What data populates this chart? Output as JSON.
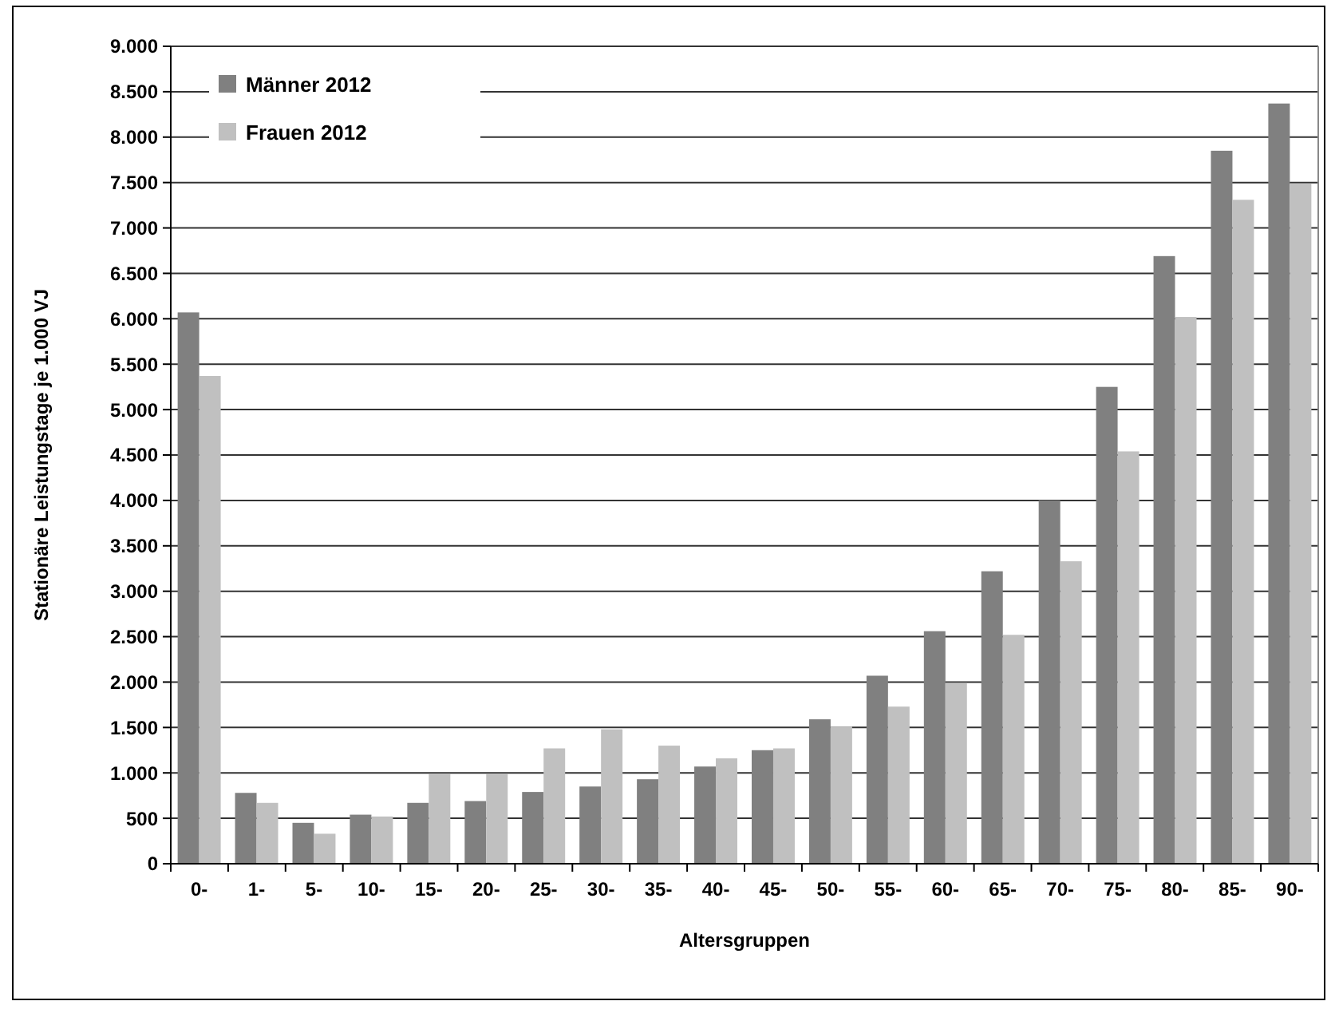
{
  "chart_data": {
    "type": "bar",
    "xlabel": "Altersgruppen",
    "ylabel": "Stationäre Leistungstage je 1.000 VJ",
    "categories": [
      "0-",
      "1-",
      "5-",
      "10-",
      "15-",
      "20-",
      "25-",
      "30-",
      "35-",
      "40-",
      "45-",
      "50-",
      "55-",
      "60-",
      "65-",
      "70-",
      "75-",
      "80-",
      "85-",
      "90-"
    ],
    "series": [
      {
        "name": "Männer 2012",
        "color": "#808080",
        "values": [
          6070,
          780,
          450,
          540,
          670,
          690,
          790,
          850,
          930,
          1070,
          1250,
          1590,
          2070,
          2560,
          3220,
          4000,
          5250,
          6690,
          7850,
          8370
        ]
      },
      {
        "name": "Frauen 2012",
        "color": "#c0c0c0",
        "values": [
          5370,
          670,
          330,
          520,
          990,
          990,
          1270,
          1480,
          1300,
          1160,
          1270,
          1510,
          1730,
          1990,
          2520,
          3330,
          4540,
          6020,
          7310,
          7490
        ]
      }
    ],
    "ylim": [
      0,
      9000
    ],
    "yticks": [
      0,
      {
        "value": 500,
        "label": "500"
      },
      {
        "value": 1000,
        "label": "1.000"
      },
      {
        "value": 1500,
        "label": "1.500"
      },
      {
        "value": 2000,
        "label": "2.000"
      },
      {
        "value": 2500,
        "label": "2.500"
      },
      {
        "value": 3000,
        "label": "3.000"
      },
      {
        "value": 3500,
        "label": "3.500"
      },
      {
        "value": 4000,
        "label": "4.000"
      },
      {
        "value": 4500,
        "label": "4.500"
      },
      {
        "value": 5000,
        "label": "5.000"
      },
      {
        "value": 5500,
        "label": "5.500"
      },
      {
        "value": 6000,
        "label": "6.000"
      },
      {
        "value": 6500,
        "label": "6.500"
      },
      {
        "value": 7000,
        "label": "7.000"
      },
      {
        "value": 7500,
        "label": "7.500"
      },
      {
        "value": 8000,
        "label": "8.000"
      },
      {
        "value": 8500,
        "label": "8.500"
      },
      {
        "value": 9000,
        "label": "9.000"
      }
    ],
    "grid": "y",
    "legend": "top left"
  }
}
